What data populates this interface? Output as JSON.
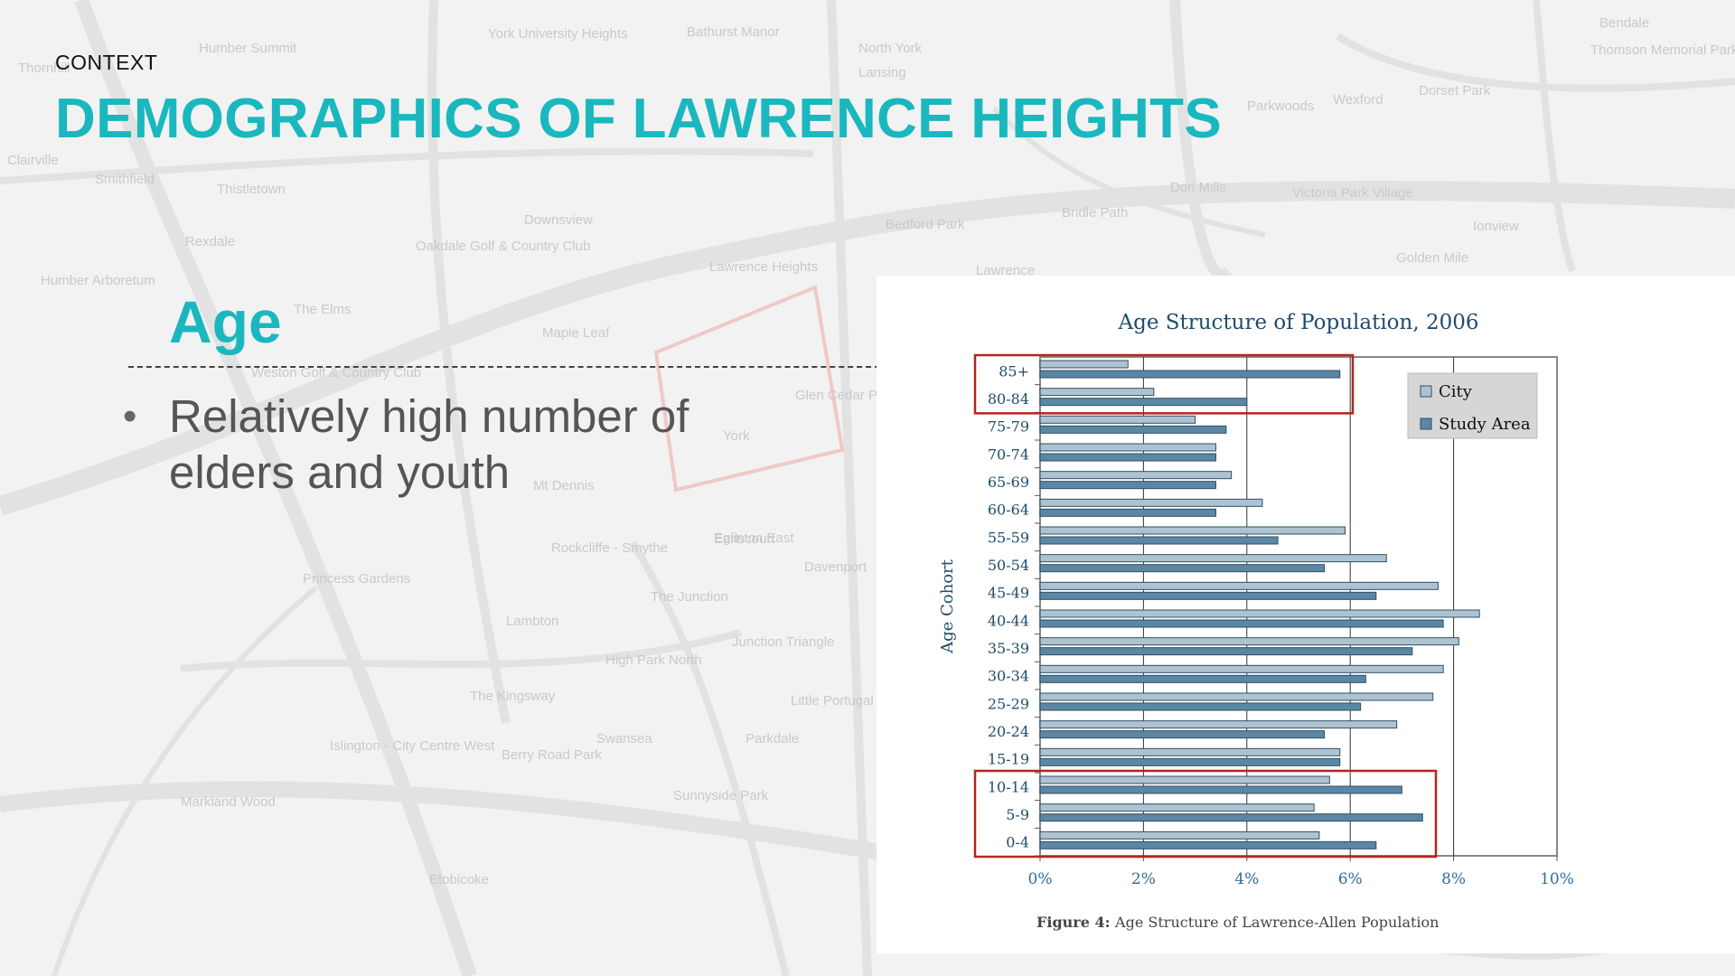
{
  "slide": {
    "context_label": "CONTEXT",
    "title": "DEMOGRAPHICS OF LAWRENCE HEIGHTS",
    "section_heading": "Age",
    "bullets": [
      "Relatively high number of elders and youth"
    ]
  },
  "map_labels": [
    "North York",
    "Thornhill",
    "Humber Summit",
    "York University Heights",
    "Bathurst Manor",
    "Lansing",
    "Bendale",
    "Thomson Memorial Park",
    "Dorset Park",
    "Parkwoods",
    "Wexford",
    "Clairville",
    "Smithfield",
    "Thistletown",
    "Rexdale",
    "Humber Arboretum",
    "Downsview",
    "Oakdale Golf & Country Club",
    "Lawrence Heights",
    "Bedford Park",
    "Lawrence",
    "Maple Leaf",
    "The Elms",
    "Weston Golf & Country Club",
    "Glen Cedar Park",
    "York",
    "Mt Dennis",
    "Rockcliffe - Smythe",
    "Eglinton East",
    "Golden Mile",
    "Earlscourt",
    "Davenport",
    "Princess Gardens",
    "Lambton",
    "The Junction",
    "Junction Triangle",
    "The Kingsway",
    "High Park North",
    "Little Portugal",
    "Islington - City Centre West",
    "Berry Road Park",
    "Swansea",
    "Parkdale",
    "Sunnyside Park",
    "Markland Wood",
    "Etobicoke",
    "Victoria Park Village",
    "Don Mills",
    "Ionview",
    "Bridle Path"
  ],
  "colors": {
    "accent": "#1ab8be",
    "city_bar": "#aec3d2",
    "study_bar": "#5b87a4",
    "highlight_box": "#b3261e",
    "chart_text": "#1f4d6b"
  },
  "chart_data": {
    "type": "bar",
    "orientation": "horizontal",
    "title": "Age Structure of Population, 2006",
    "ylabel": "Age Cohort",
    "xlabel": "",
    "categories": [
      "85+",
      "80-84",
      "75-79",
      "70-74",
      "65-69",
      "60-64",
      "55-59",
      "50-54",
      "45-49",
      "40-44",
      "35-39",
      "30-34",
      "25-29",
      "20-24",
      "15-19",
      "10-14",
      "5-9",
      "0-4"
    ],
    "series": [
      {
        "name": "City",
        "values": [
          1.7,
          2.2,
          3.0,
          3.4,
          3.7,
          4.3,
          5.9,
          6.7,
          7.7,
          8.5,
          8.1,
          7.8,
          7.6,
          6.9,
          5.8,
          5.6,
          5.3,
          5.4
        ]
      },
      {
        "name": "Study Area",
        "values": [
          5.8,
          4.0,
          3.6,
          3.4,
          3.4,
          3.4,
          4.6,
          5.5,
          6.5,
          7.8,
          7.2,
          6.3,
          6.2,
          5.5,
          5.8,
          7.0,
          7.4,
          6.5
        ]
      }
    ],
    "xlim": [
      0,
      10
    ],
    "xticks": [
      "0%",
      "2%",
      "4%",
      "6%",
      "8%",
      "10%"
    ],
    "grid": true,
    "legend": "top-right",
    "caption_label": "Figure 4:",
    "caption_text": "Age Structure of Lawrence-Allen Population",
    "highlighted_groups": [
      [
        "85+",
        "80-84"
      ],
      [
        "10-14",
        "5-9",
        "0-4"
      ]
    ]
  }
}
